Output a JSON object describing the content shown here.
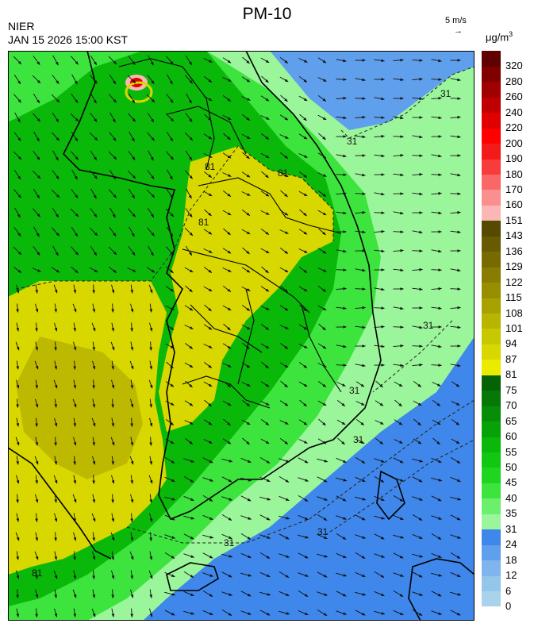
{
  "header": {
    "title": "PM-10",
    "org": "NIER",
    "datetime": "JAN 15 2026 15:00 KST",
    "wind_ref_label": "5 m/s",
    "wind_ref_arrow": "→",
    "unit_prefix": "μg/m",
    "unit_sup": "3"
  },
  "legend": {
    "bins": [
      {
        "label": "0",
        "color": "#a9d3ea"
      },
      {
        "label": "6",
        "color": "#94c6ea"
      },
      {
        "label": "12",
        "color": "#7fb5ec"
      },
      {
        "label": "18",
        "color": "#609fec"
      },
      {
        "label": "24",
        "color": "#3f87ea"
      },
      {
        "label": "31",
        "color": "#9bf59b"
      },
      {
        "label": "35",
        "color": "#6cf06c"
      },
      {
        "label": "40",
        "color": "#3ee43e"
      },
      {
        "label": "45",
        "color": "#1ed61e"
      },
      {
        "label": "50",
        "color": "#11c711"
      },
      {
        "label": "55",
        "color": "#0ab80a"
      },
      {
        "label": "60",
        "color": "#07a207"
      },
      {
        "label": "65",
        "color": "#078d07"
      },
      {
        "label": "70",
        "color": "#067806"
      },
      {
        "label": "75",
        "color": "#056305"
      },
      {
        "label": "81",
        "color": "#ebeb00"
      },
      {
        "label": "87",
        "color": "#d8d800"
      },
      {
        "label": "94",
        "color": "#c8c800"
      },
      {
        "label": "101",
        "color": "#b8b400"
      },
      {
        "label": "108",
        "color": "#a8a200"
      },
      {
        "label": "115",
        "color": "#988f00"
      },
      {
        "label": "122",
        "color": "#887d00"
      },
      {
        "label": "129",
        "color": "#776b00"
      },
      {
        "label": "136",
        "color": "#675a00"
      },
      {
        "label": "143",
        "color": "#564a00"
      },
      {
        "label": "151",
        "color": "#fbb6b6"
      },
      {
        "label": "160",
        "color": "#fa8f8f"
      },
      {
        "label": "170",
        "color": "#f96767"
      },
      {
        "label": "180",
        "color": "#f83c3c"
      },
      {
        "label": "190",
        "color": "#f41a1a"
      },
      {
        "label": "200",
        "color": "#ff0000"
      },
      {
        "label": "220",
        "color": "#e00000"
      },
      {
        "label": "240",
        "color": "#c00000"
      },
      {
        "label": "260",
        "color": "#a00000"
      },
      {
        "label": "280",
        "color": "#800000"
      },
      {
        "label": "320",
        "color": "#600000"
      }
    ]
  },
  "map": {
    "contour_labels": [
      "31",
      "31",
      "31",
      "31",
      "31",
      "31",
      "31",
      "81",
      "81",
      "81",
      "81"
    ],
    "hotspot_color": "#e00000"
  }
}
